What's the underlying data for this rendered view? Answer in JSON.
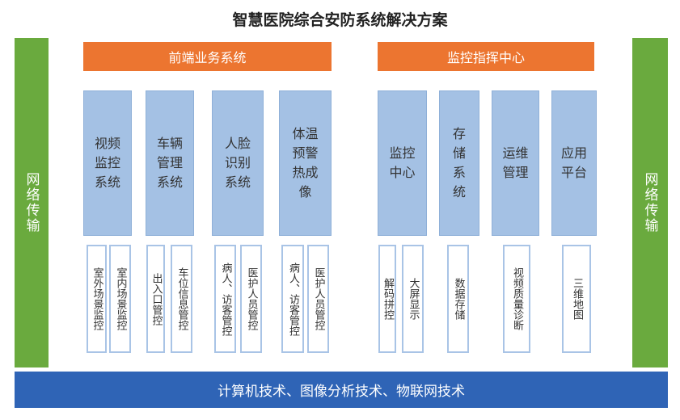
{
  "title": "智慧医院综合安防系统解决方案",
  "side_left": "网络传输",
  "side_right": "网络传输",
  "groups": [
    {
      "label": "前端业务系统"
    },
    {
      "label": "监控指挥中心"
    }
  ],
  "systems": [
    {
      "label": "视频监控系统",
      "subs": [
        "室外场景监控",
        "室内场景监控"
      ]
    },
    {
      "label": "车辆管理系统",
      "subs": [
        "出入口管控",
        "车位信息管控"
      ]
    },
    {
      "label": "人脸识别系统",
      "subs": [
        "病人、访客管控",
        "医护人员管控"
      ]
    },
    {
      "label": "体温预警热成像",
      "subs": [
        "病人、访客管控",
        "医护人员管控"
      ]
    },
    {
      "label": "监控中心",
      "subs": [
        "解码拼控",
        "大屏显示"
      ]
    },
    {
      "label": "存储系统",
      "subs": [
        "数据存储"
      ]
    },
    {
      "label": "运维管理",
      "subs": [
        "视频质量诊断"
      ]
    },
    {
      "label": "应用平台",
      "subs": [
        "三维地图"
      ]
    }
  ],
  "footer": "计算机技术、图像分析技术、物联网技术",
  "colors": {
    "orange": "#ec7530",
    "green": "#6aaa3e",
    "light_blue": "#a4c1e4",
    "dark_blue": "#2f64b6"
  }
}
